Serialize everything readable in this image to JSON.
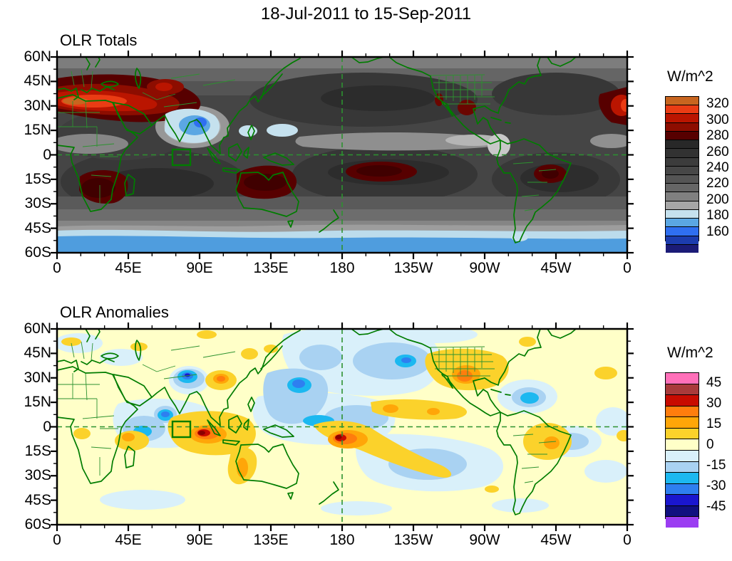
{
  "title": "18-Jul-2011 to 15-Sep-2011",
  "axes": {
    "x_tick_labels": [
      "0",
      "45E",
      "90E",
      "135E",
      "180",
      "135W",
      "90W",
      "45W",
      "0"
    ],
    "y_tick_labels": [
      "60N",
      "45N",
      "30N",
      "15N",
      "0",
      "15S",
      "30S",
      "45S",
      "60S"
    ]
  },
  "panels": [
    {
      "title": "OLR Totals",
      "colorbar": {
        "units": "W/m^2",
        "tick_values": [
          "320",
          "300",
          "280",
          "260",
          "240",
          "220",
          "200",
          "180",
          "160"
        ],
        "cell_colors_top_to_bottom": [
          "#c8651f",
          "#ea3c14",
          "#ba1500",
          "#8d0d00",
          "#570000",
          "#282828",
          "#323232",
          "#3c3c3c",
          "#474747",
          "#555555",
          "#666666",
          "#808080",
          "#a6a6a6",
          "#c5e1ee",
          "#5ba7e3",
          "#2f6ff0",
          "#1c3cae",
          "#1b1b77"
        ]
      }
    },
    {
      "title": "OLR Anomalies",
      "colorbar": {
        "units": "W/m^2",
        "tick_values": [
          "45",
          "30",
          "15",
          "0",
          "-15",
          "-30",
          "-45"
        ],
        "cell_colors_top_to_bottom": [
          "#ff70b9",
          "#a93a3a",
          "#c80b00",
          "#ff7d0d",
          "#ffa608",
          "#fbd22b",
          "#ffffc8",
          "#d9f0fa",
          "#a9d2f2",
          "#1cb8f0",
          "#2e7ff0",
          "#1a16cf",
          "#101080",
          "#9b3df2"
        ]
      }
    }
  ],
  "colors": {
    "coastline_green": "#007c00",
    "border_green": "#2d9230",
    "dashed_line_green": "#2d9230",
    "map_frame": "#000000",
    "anomaly_background": "#ffffc8"
  },
  "chart_data": [
    {
      "type": "heatmap",
      "subtype": "filled-contour world map, cylindrical equidistant",
      "title": "OLR Totals",
      "period": "18-Jul-2011 to 15-Sep-2011",
      "units": "W/m^2",
      "lon_range_deg": [
        0,
        360
      ],
      "lat_range_deg": [
        -60,
        60
      ],
      "x_tick_labels": [
        "0",
        "45E",
        "90E",
        "135E",
        "180",
        "135W",
        "90W",
        "45W",
        "0"
      ],
      "y_tick_labels": [
        "60N",
        "45N",
        "30N",
        "15N",
        "0",
        "15S",
        "30S",
        "45S",
        "60S"
      ],
      "contour_interval": 10,
      "labeled_levels": [
        160,
        180,
        200,
        220,
        240,
        260,
        280,
        300,
        320
      ],
      "value_range_shown": [
        150,
        330
      ],
      "legend_position": "right",
      "grid": false,
      "overlays": [
        "green coastlines and country/state borders",
        "dashed equator line",
        "dashed 180-deg meridian",
        "green index box ~73E-85E, 3N-8S"
      ],
      "features": [
        {
          "region": "Sahara / Arabian Peninsula ~15-35N",
          "value_wm2": "300-330 maximum (orange/red)"
        },
        {
          "region": "Iran / Central Asia ~40N",
          "value_wm2": "290-300"
        },
        {
          "region": "India / Bay of Bengal monsoon",
          "value_wm2": "170-200 minimum (blue)"
        },
        {
          "region": "Western Pacific ~10-20N patches",
          "value_wm2": "190-200"
        },
        {
          "region": "Southern Africa ~10-30S",
          "value_wm2": "280-300 (dark maroon)"
        },
        {
          "region": "Australia / waters north of it",
          "value_wm2": "280-300 (dark maroon)"
        },
        {
          "region": "Central South Pacific ~5-17S, 175W-135W",
          "value_wm2": "280-290"
        },
        {
          "region": "Interior Brazil ~5-18S",
          "value_wm2": "280-290"
        },
        {
          "region": "Texas / N. Mexico and California",
          "value_wm2": "280-290"
        },
        {
          "region": "NW Africa at right map edge ~30N",
          "value_wm2": "300-320"
        },
        {
          "region": "ITCZ east Pacific / Colombia",
          "value_wm2": "200-220 (light gray band)"
        },
        {
          "region": "Southern Ocean 50-60S",
          "value_wm2": "160-200 (pale blue to blue band)"
        }
      ]
    },
    {
      "type": "heatmap",
      "subtype": "filled-contour world map, cylindrical equidistant",
      "title": "OLR Anomalies",
      "period": "18-Jul-2011 to 15-Sep-2011",
      "units": "W/m^2",
      "lon_range_deg": [
        0,
        360
      ],
      "lat_range_deg": [
        -60,
        60
      ],
      "x_tick_labels": [
        "0",
        "45E",
        "90E",
        "135E",
        "180",
        "135W",
        "90W",
        "45W",
        "0"
      ],
      "y_tick_labels": [
        "60N",
        "45N",
        "30N",
        "15N",
        "0",
        "15S",
        "30S",
        "45S",
        "60S"
      ],
      "contour_interval": 7.5,
      "labeled_levels": [
        -45,
        -30,
        -15,
        0,
        15,
        30,
        45
      ],
      "value_range_shown": [
        -52.5,
        52.5
      ],
      "legend_position": "right",
      "grid": false,
      "overlays": [
        "green coastlines and country/state borders",
        "dashed equator line",
        "dashed 180-deg meridian",
        "green index box ~73E-85E, 3N-8S"
      ],
      "features": [
        {
          "region": "Eastern Indian Ocean near Sumatra ~5S, 85-100E",
          "anomaly_wm2": "+30 to +45 maximum (red core)"
        },
        {
          "region": "Near dateline just south of equator",
          "anomaly_wm2": "+30 to +45 (red/orange core), yellow streak extending SE across S. Pacific"
        },
        {
          "region": "N. India / Himalaya",
          "anomaly_wm2": "-30 to -45 (dark blue core)"
        },
        {
          "region": "Arabian Sea",
          "anomaly_wm2": "-20 to -30"
        },
        {
          "region": "Equatorial central Indian Ocean",
          "anomaly_wm2": "-15 to -25"
        },
        {
          "region": "Tropical west Pacific ~10-25N",
          "anomaly_wm2": "-15 to -35 (broad blue region)"
        },
        {
          "region": "Eastern China",
          "anomaly_wm2": "+15 to +30 (orange)"
        },
        {
          "region": "Texas / southern US plains",
          "anomaly_wm2": "+15 to +30 (orange), gold over much of US"
        },
        {
          "region": "Caribbean / W. Atlantic ~20N",
          "anomaly_wm2": "-15 to -25 (cyan)"
        },
        {
          "region": "East Pacific ITCZ band ~8-12N",
          "anomaly_wm2": "+10 to +20"
        },
        {
          "region": "Interior Brazil",
          "anomaly_wm2": "+10 to +20"
        },
        {
          "region": "Western Australia coast band",
          "anomaly_wm2": "+10 to +20"
        },
        {
          "region": "Most remaining oceans",
          "anomaly_wm2": "near 0 (pale yellow) with scattered weak negatives (pale blue)"
        }
      ]
    }
  ]
}
